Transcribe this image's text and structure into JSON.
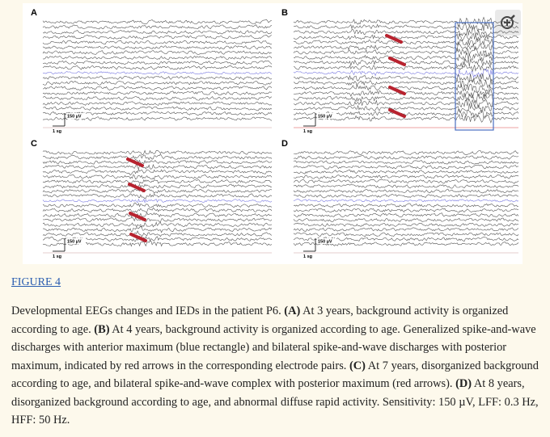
{
  "figure": {
    "panels": [
      {
        "label": "A",
        "amplitude": "150 µV",
        "time": "1 sg"
      },
      {
        "label": "B",
        "amplitude": "150 µV",
        "time": "1 sg"
      },
      {
        "label": "C",
        "amplitude": "150 µV",
        "time": "1 sg"
      },
      {
        "label": "D",
        "amplitude": "150 µV",
        "time": "1 sg"
      }
    ],
    "link": "FIGURE 4",
    "caption": {
      "segments": [
        {
          "text": "Developmental EEGs changes and IEDs in the patient P6. ",
          "bold": false
        },
        {
          "text": "(A)",
          "bold": true
        },
        {
          "text": " At 3 years, background activity is organized according to age. ",
          "bold": false
        },
        {
          "text": "(B)",
          "bold": true
        },
        {
          "text": " At 4 years, background activity is organized according to age. Generalized spike-and-wave discharges with anterior maximum (blue rectangle) and bilateral spike-and-wave discharges with posterior maximum, indicated by red arrows in the corresponding electrode pairs. ",
          "bold": false
        },
        {
          "text": "(C)",
          "bold": true
        },
        {
          "text": " At 7 years, disorganized background according to age, and bilateral spike-and-wave complex with posterior maximum (red arrows). ",
          "bold": false
        },
        {
          "text": "(D)",
          "bold": true
        },
        {
          "text": " At 8 years, disorganized background according to age, and abnormal diffuse rapid activity. Sensitivity: 150 µV, LFF: 0.3 Hz, HFF: 50 Hz.",
          "bold": false
        }
      ]
    }
  }
}
